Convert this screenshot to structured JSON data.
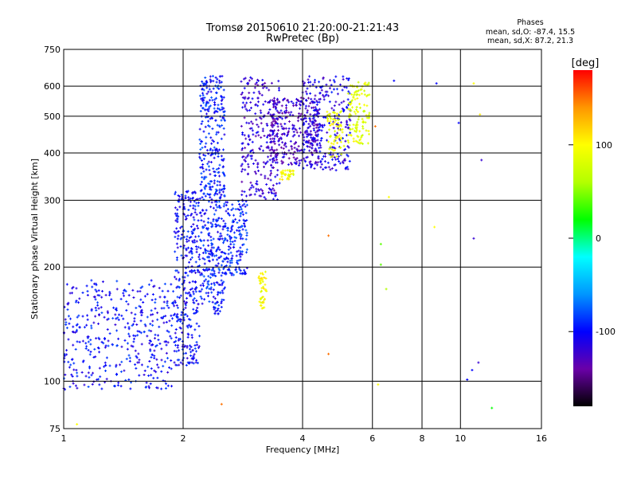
{
  "title": {
    "line1": "Tromsø 20150610 21:20:00-21:21:43",
    "line2": "RwPretec (Bp)"
  },
  "phase_legend": {
    "heading": "Phases",
    "o_mode": "mean, sd,O:  -87.4, 15.5",
    "x_mode": "mean, sd,X:  87.2, 21.3"
  },
  "colorbar": {
    "unit": "[deg]",
    "tick_labels": [
      "100",
      "0",
      "-100"
    ],
    "ticks": [
      100,
      0,
      -100
    ],
    "range": [
      -180,
      180
    ],
    "colors": [
      "#000000",
      "#6a00a8",
      "#0000ff",
      "#0096ff",
      "#00ffff",
      "#00ff00",
      "#b4ff00",
      "#ffff00",
      "#ff9600",
      "#ff0000"
    ]
  },
  "chart_data": {
    "type": "scatter",
    "title": "Tromsø 20150610 21:20:00-21:21:43",
    "subtitle": "RwPretec (Bp)",
    "xlabel": "Frequency [MHz]",
    "ylabel": "Stationary phase Virtual Height [km]",
    "x_scale": "log",
    "y_scale": "log",
    "xlim": [
      1,
      16
    ],
    "ylim": [
      75,
      750
    ],
    "x_ticks": [
      1,
      2,
      4,
      6,
      8,
      10,
      16
    ],
    "x_tick_labels": [
      "1",
      "2",
      "4",
      "6",
      "8",
      "10",
      "16"
    ],
    "y_ticks": [
      75,
      100,
      200,
      300,
      400,
      500,
      600,
      750
    ],
    "y_tick_labels": [
      "75",
      "100",
      "200",
      "300",
      "400",
      "500",
      "600",
      "750"
    ],
    "x_gridlines": [
      2,
      4,
      6,
      8,
      10
    ],
    "y_gridlines": [
      100,
      200,
      300,
      400,
      500,
      600
    ],
    "grid": true,
    "color_variable": "phase [deg]",
    "series": [
      {
        "x_range": [
          1.0,
          1.9
        ],
        "y_range": [
          95,
          185
        ],
        "phase": -100,
        "density": 420
      },
      {
        "x_range": [
          1.9,
          2.2
        ],
        "y_range": [
          110,
          320
        ],
        "phase": -100,
        "density": 340
      },
      {
        "x_range": [
          2.2,
          2.55
        ],
        "y_range": [
          150,
          640
        ],
        "phase": -95,
        "density": 520
      },
      {
        "x_range": [
          2.55,
          2.9
        ],
        "y_range": [
          190,
          300
        ],
        "phase": -92,
        "density": 160
      },
      {
        "x_range": [
          2.8,
          3.5
        ],
        "y_range": [
          300,
          640
        ],
        "phase": -120,
        "density": 260
      },
      {
        "x_range": [
          3.3,
          4.4
        ],
        "y_range": [
          370,
          560
        ],
        "phase": -125,
        "density": 300
      },
      {
        "x_range": [
          4.0,
          5.3
        ],
        "y_range": [
          360,
          640
        ],
        "phase": -110,
        "density": 280
      },
      {
        "x_range": [
          5.2,
          5.9
        ],
        "y_range": [
          420,
          620
        ],
        "phase": 85,
        "density": 120
      },
      {
        "x_range": [
          4.6,
          5.1
        ],
        "y_range": [
          390,
          520
        ],
        "phase": 90,
        "density": 70
      },
      {
        "x_range": [
          3.5,
          3.8
        ],
        "y_range": [
          340,
          360
        ],
        "phase": 95,
        "density": 30
      },
      {
        "x_range": [
          3.1,
          3.25
        ],
        "y_range": [
          155,
          195
        ],
        "phase": 95,
        "density": 45
      }
    ],
    "isolated_points": [
      {
        "x": 1.08,
        "y": 77,
        "phase": 100
      },
      {
        "x": 2.5,
        "y": 87,
        "phase": 150
      },
      {
        "x": 4.65,
        "y": 118,
        "phase": 150
      },
      {
        "x": 4.65,
        "y": 242,
        "phase": 150
      },
      {
        "x": 6.2,
        "y": 98,
        "phase": 100
      },
      {
        "x": 6.3,
        "y": 230,
        "phase": 40
      },
      {
        "x": 6.3,
        "y": 203,
        "phase": 40
      },
      {
        "x": 6.5,
        "y": 175,
        "phase": 60
      },
      {
        "x": 6.6,
        "y": 306,
        "phase": 100
      },
      {
        "x": 6.1,
        "y": 470,
        "phase": 150
      },
      {
        "x": 6.8,
        "y": 620,
        "phase": -100
      },
      {
        "x": 8.7,
        "y": 610,
        "phase": -100
      },
      {
        "x": 8.6,
        "y": 255,
        "phase": 100
      },
      {
        "x": 9.9,
        "y": 480,
        "phase": -100
      },
      {
        "x": 10.4,
        "y": 101,
        "phase": -100
      },
      {
        "x": 10.7,
        "y": 107,
        "phase": -100
      },
      {
        "x": 11.1,
        "y": 112,
        "phase": -120
      },
      {
        "x": 10.8,
        "y": 238,
        "phase": -120
      },
      {
        "x": 11.3,
        "y": 383,
        "phase": -120
      },
      {
        "x": 11.2,
        "y": 505,
        "phase": 110
      },
      {
        "x": 10.8,
        "y": 610,
        "phase": 100
      },
      {
        "x": 12.0,
        "y": 85,
        "phase": 20
      }
    ]
  }
}
